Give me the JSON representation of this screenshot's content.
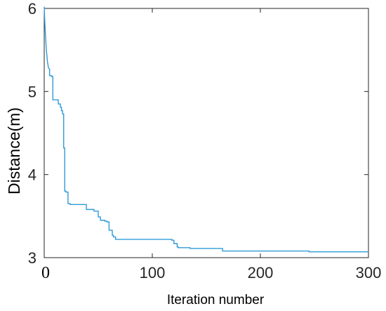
{
  "chart_data": {
    "type": "line",
    "title": "",
    "xlabel": "Iteration number",
    "ylabel": "Distance(m)",
    "xlim": [
      0,
      300
    ],
    "ylim": [
      3,
      6
    ],
    "xticks": [
      0,
      100,
      200,
      300
    ],
    "xtick_labels": [
      "0",
      "100",
      "200",
      "300"
    ],
    "yticks": [
      3,
      4,
      5,
      6
    ],
    "ytick_labels": [
      "3",
      "4",
      "5",
      "6"
    ],
    "grid": false,
    "legend": "none",
    "line_color": "#2f9bd8",
    "series": [
      {
        "x": [
          0,
          0.5,
          1,
          1.5,
          2,
          2.5,
          3,
          3.5,
          4,
          5,
          5,
          7,
          7,
          8,
          8,
          13,
          13,
          15,
          15,
          16,
          16,
          17,
          17,
          18,
          18,
          19,
          19,
          20,
          20,
          22,
          22,
          24,
          24,
          39,
          39,
          46,
          46,
          50,
          50,
          52,
          52,
          56,
          56,
          58,
          58,
          60,
          60,
          63,
          63,
          64,
          64,
          66,
          66,
          118,
          118,
          120,
          120,
          123,
          123,
          124,
          124,
          135,
          135,
          165,
          165,
          245,
          245,
          300
        ],
        "y": [
          6.02,
          5.85,
          5.72,
          5.6,
          5.5,
          5.43,
          5.36,
          5.32,
          5.28,
          5.27,
          5.19,
          5.19,
          5.18,
          5.18,
          4.9,
          4.9,
          4.85,
          4.85,
          4.81,
          4.81,
          4.77,
          4.77,
          4.73,
          4.73,
          4.32,
          4.32,
          3.8,
          3.8,
          3.79,
          3.79,
          3.65,
          3.65,
          3.64,
          3.64,
          3.58,
          3.58,
          3.56,
          3.56,
          3.49,
          3.49,
          3.45,
          3.45,
          3.44,
          3.44,
          3.43,
          3.43,
          3.33,
          3.33,
          3.27,
          3.27,
          3.25,
          3.25,
          3.22,
          3.22,
          3.21,
          3.21,
          3.17,
          3.17,
          3.13,
          3.13,
          3.12,
          3.12,
          3.11,
          3.11,
          3.08,
          3.08,
          3.07,
          3.07
        ]
      }
    ]
  }
}
